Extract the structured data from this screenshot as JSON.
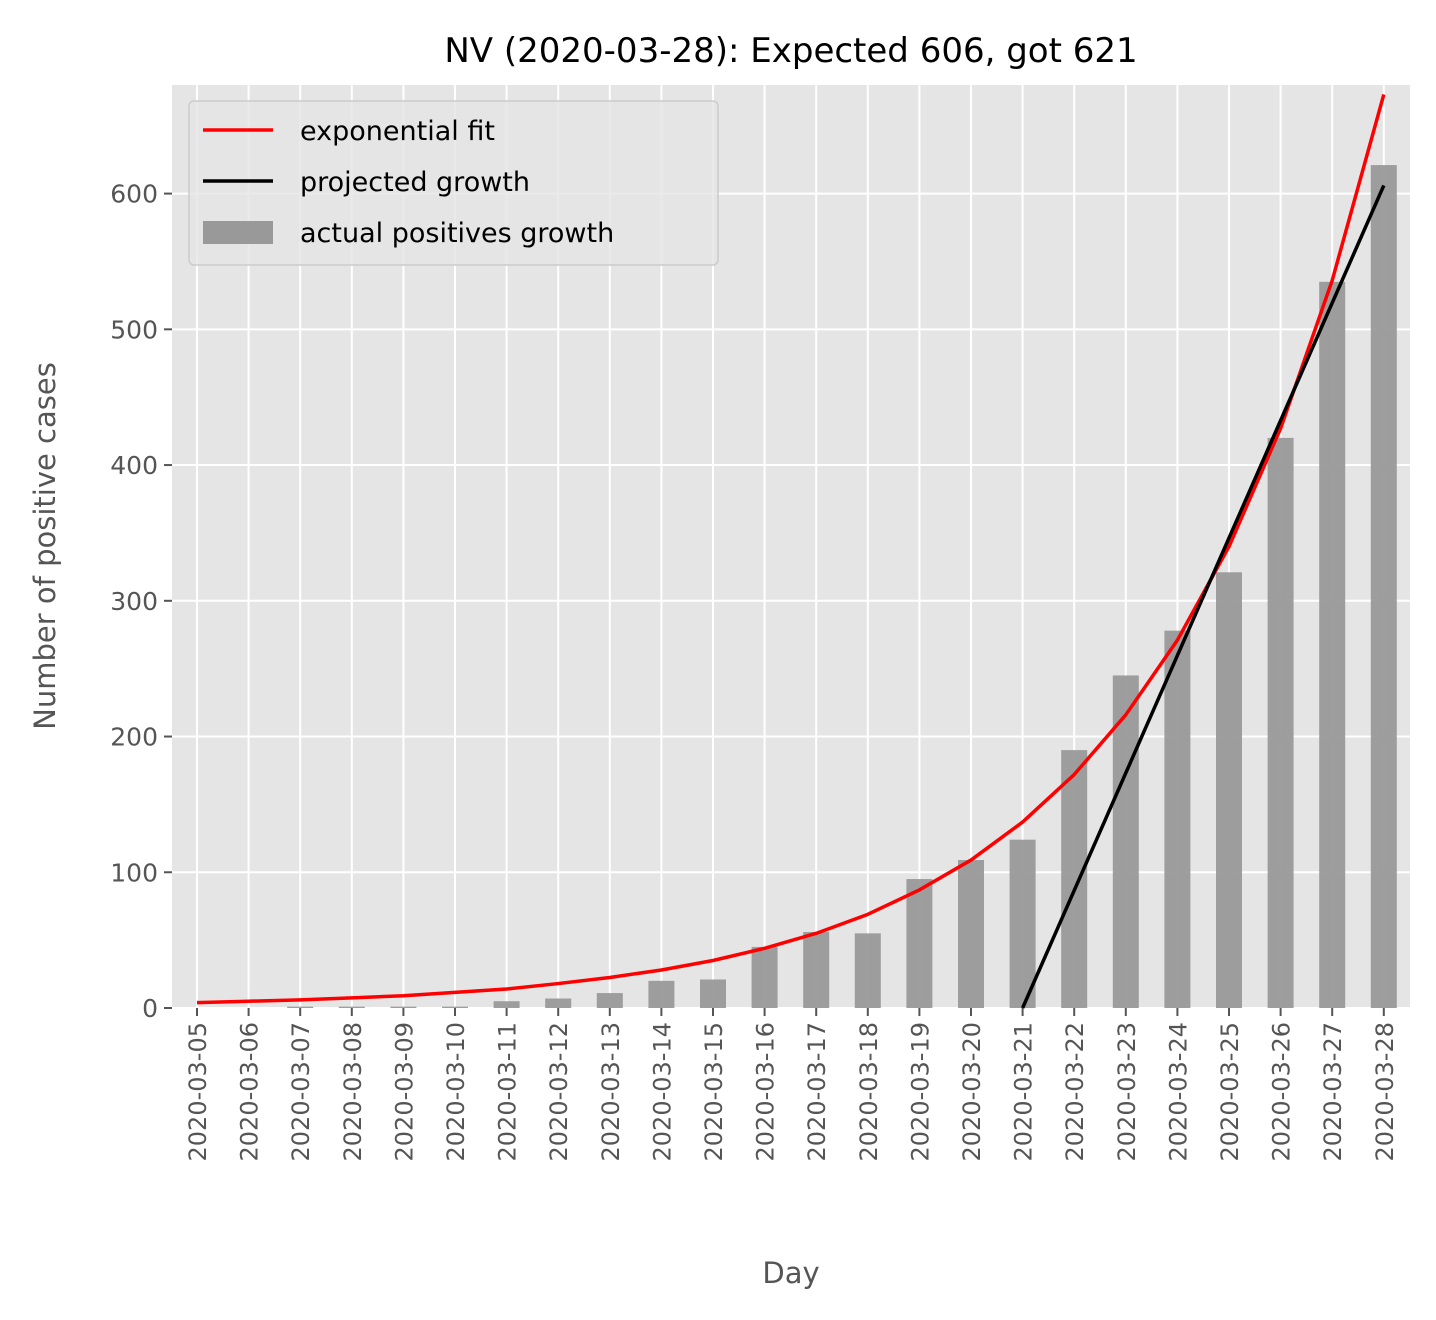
{
  "chart_data": {
    "type": "bar",
    "title": "NV (2020-03-28): Expected 606, got 621",
    "xlabel": "Day",
    "ylabel": "Number of positive cases",
    "categories": [
      "2020-03-05",
      "2020-03-06",
      "2020-03-07",
      "2020-03-08",
      "2020-03-09",
      "2020-03-10",
      "2020-03-11",
      "2020-03-12",
      "2020-03-13",
      "2020-03-14",
      "2020-03-15",
      "2020-03-16",
      "2020-03-17",
      "2020-03-18",
      "2020-03-19",
      "2020-03-20",
      "2020-03-21",
      "2020-03-22",
      "2020-03-23",
      "2020-03-24",
      "2020-03-25",
      "2020-03-26",
      "2020-03-27",
      "2020-03-28"
    ],
    "ylim": [
      0,
      680
    ],
    "yticks": [
      0,
      100,
      200,
      300,
      400,
      500,
      600
    ],
    "grid": true,
    "legend_position": "top-left",
    "series": [
      {
        "name": "exponential fit",
        "kind": "line",
        "color": "#ff0000",
        "values": [
          4,
          5,
          6,
          7.5,
          9,
          11.5,
          14,
          18,
          22.5,
          28,
          35,
          44,
          55,
          69,
          87,
          109,
          137,
          172,
          216,
          271,
          340,
          427,
          536,
          673
        ]
      },
      {
        "name": "projected growth",
        "kind": "line",
        "color": "#000000",
        "x": [
          "2020-03-21",
          "2020-03-28"
        ],
        "values": [
          0,
          606
        ]
      },
      {
        "name": "actual positives growth",
        "kind": "bar",
        "color": "#999999",
        "values": [
          0,
          0,
          1,
          1,
          1,
          1,
          5,
          7,
          11,
          20,
          21,
          45,
          56,
          55,
          95,
          109,
          124,
          190,
          245,
          278,
          321,
          420,
          535,
          621
        ]
      }
    ]
  }
}
